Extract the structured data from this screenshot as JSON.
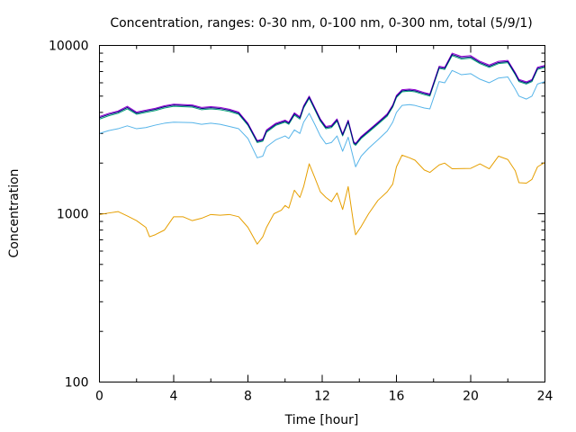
{
  "chart_data": {
    "type": "line",
    "title": "Concentration, ranges: 0-30 nm, 0-100 nm, 0-300 nm, total (5/9/1)",
    "xlabel": "Time [hour]",
    "ylabel": "Concentration",
    "x_ticks": [
      "0",
      "4",
      "8",
      "12",
      "16",
      "20",
      "24"
    ],
    "y_ticks": [
      "100",
      "1000",
      "10000"
    ],
    "xlim": [
      0,
      24
    ],
    "ylim": [
      100,
      10000
    ],
    "y_scale": "log",
    "grid": false,
    "legend": "none",
    "series": [
      {
        "color": "#e69f00",
        "points": [
          [
            0,
            990
          ],
          [
            0.5,
            1010
          ],
          [
            1,
            1030
          ],
          [
            1.5,
            970
          ],
          [
            2,
            910
          ],
          [
            2.5,
            830
          ],
          [
            2.7,
            730
          ],
          [
            3,
            750
          ],
          [
            3.5,
            800
          ],
          [
            4,
            960
          ],
          [
            4.5,
            960
          ],
          [
            5,
            910
          ],
          [
            5.5,
            940
          ],
          [
            6,
            990
          ],
          [
            6.5,
            980
          ],
          [
            7,
            990
          ],
          [
            7.5,
            960
          ],
          [
            8,
            830
          ],
          [
            8.5,
            660
          ],
          [
            8.8,
            730
          ],
          [
            9,
            830
          ],
          [
            9.4,
            1000
          ],
          [
            9.8,
            1050
          ],
          [
            10,
            1120
          ],
          [
            10.2,
            1080
          ],
          [
            10.5,
            1380
          ],
          [
            10.8,
            1250
          ],
          [
            11,
            1450
          ],
          [
            11.3,
            1980
          ],
          [
            11.6,
            1640
          ],
          [
            11.9,
            1350
          ],
          [
            12.2,
            1250
          ],
          [
            12.5,
            1180
          ],
          [
            12.8,
            1330
          ],
          [
            13.1,
            1060
          ],
          [
            13.4,
            1450
          ],
          [
            13.7,
            860
          ],
          [
            13.8,
            750
          ],
          [
            14.1,
            840
          ],
          [
            14.5,
            1000
          ],
          [
            15,
            1200
          ],
          [
            15.5,
            1350
          ],
          [
            15.8,
            1500
          ],
          [
            16,
            1900
          ],
          [
            16.3,
            2230
          ],
          [
            16.7,
            2150
          ],
          [
            17,
            2080
          ],
          [
            17.5,
            1820
          ],
          [
            17.8,
            1760
          ],
          [
            18.3,
            1950
          ],
          [
            18.6,
            2000
          ],
          [
            19,
            1850
          ],
          [
            20,
            1860
          ],
          [
            20.5,
            1980
          ],
          [
            21,
            1850
          ],
          [
            21.5,
            2200
          ],
          [
            22,
            2100
          ],
          [
            22.4,
            1800
          ],
          [
            22.6,
            1530
          ],
          [
            23,
            1520
          ],
          [
            23.3,
            1600
          ],
          [
            23.6,
            1900
          ],
          [
            24,
            2020
          ]
        ]
      },
      {
        "color": "#56b4e9",
        "points": [
          [
            0,
            3000
          ],
          [
            0.5,
            3120
          ],
          [
            1,
            3200
          ],
          [
            1.5,
            3330
          ],
          [
            2,
            3200
          ],
          [
            2.5,
            3250
          ],
          [
            3,
            3360
          ],
          [
            3.5,
            3450
          ],
          [
            4,
            3500
          ],
          [
            5,
            3480
          ],
          [
            5.5,
            3400
          ],
          [
            6,
            3450
          ],
          [
            6.5,
            3400
          ],
          [
            7,
            3300
          ],
          [
            7.5,
            3200
          ],
          [
            8,
            2800
          ],
          [
            8.5,
            2150
          ],
          [
            8.8,
            2200
          ],
          [
            9,
            2500
          ],
          [
            9.5,
            2750
          ],
          [
            10,
            2900
          ],
          [
            10.2,
            2800
          ],
          [
            10.5,
            3150
          ],
          [
            10.8,
            3000
          ],
          [
            11,
            3500
          ],
          [
            11.3,
            3950
          ],
          [
            11.6,
            3400
          ],
          [
            11.9,
            2900
          ],
          [
            12.2,
            2600
          ],
          [
            12.5,
            2650
          ],
          [
            12.8,
            2900
          ],
          [
            13.1,
            2350
          ],
          [
            13.4,
            2850
          ],
          [
            13.7,
            2100
          ],
          [
            13.8,
            1900
          ],
          [
            14.1,
            2200
          ],
          [
            14.5,
            2450
          ],
          [
            15,
            2750
          ],
          [
            15.5,
            3100
          ],
          [
            15.8,
            3500
          ],
          [
            16,
            4000
          ],
          [
            16.3,
            4400
          ],
          [
            16.7,
            4450
          ],
          [
            17,
            4400
          ],
          [
            17.5,
            4250
          ],
          [
            17.8,
            4200
          ],
          [
            18.3,
            6100
          ],
          [
            18.6,
            6000
          ],
          [
            19,
            7100
          ],
          [
            19.5,
            6700
          ],
          [
            20,
            6800
          ],
          [
            20.5,
            6300
          ],
          [
            21,
            6000
          ],
          [
            21.5,
            6400
          ],
          [
            22,
            6500
          ],
          [
            22.4,
            5500
          ],
          [
            22.6,
            5000
          ],
          [
            23,
            4800
          ],
          [
            23.3,
            5000
          ],
          [
            23.6,
            5900
          ],
          [
            24,
            6100
          ]
        ]
      },
      {
        "color": "#009e73",
        "points": [
          [
            0,
            3650
          ],
          [
            0.5,
            3820
          ],
          [
            1,
            3950
          ],
          [
            1.5,
            4200
          ],
          [
            2,
            3900
          ],
          [
            2.5,
            4000
          ],
          [
            3,
            4100
          ],
          [
            3.5,
            4250
          ],
          [
            4,
            4350
          ],
          [
            5,
            4300
          ],
          [
            5.5,
            4150
          ],
          [
            6,
            4200
          ],
          [
            6.5,
            4150
          ],
          [
            7,
            4050
          ],
          [
            7.5,
            3900
          ],
          [
            8,
            3350
          ],
          [
            8.5,
            2650
          ],
          [
            8.8,
            2700
          ],
          [
            9,
            3050
          ],
          [
            9.5,
            3350
          ],
          [
            10,
            3500
          ],
          [
            10.2,
            3400
          ],
          [
            10.5,
            3850
          ],
          [
            10.8,
            3650
          ],
          [
            11,
            4250
          ],
          [
            11.3,
            4850
          ],
          [
            11.6,
            4150
          ],
          [
            11.9,
            3550
          ],
          [
            12.2,
            3200
          ],
          [
            12.5,
            3250
          ],
          [
            12.8,
            3550
          ],
          [
            13.1,
            2900
          ],
          [
            13.4,
            3500
          ],
          [
            13.7,
            2600
          ],
          [
            13.8,
            2550
          ],
          [
            14.1,
            2800
          ],
          [
            14.5,
            3050
          ],
          [
            15,
            3400
          ],
          [
            15.5,
            3800
          ],
          [
            15.8,
            4300
          ],
          [
            16,
            4900
          ],
          [
            16.3,
            5300
          ],
          [
            16.7,
            5350
          ],
          [
            17,
            5300
          ],
          [
            17.5,
            5100
          ],
          [
            17.8,
            5000
          ],
          [
            18.3,
            7300
          ],
          [
            18.6,
            7200
          ],
          [
            19,
            8700
          ],
          [
            19.5,
            8300
          ],
          [
            20,
            8400
          ],
          [
            20.5,
            7800
          ],
          [
            21,
            7400
          ],
          [
            21.5,
            7800
          ],
          [
            22,
            7900
          ],
          [
            22.4,
            6700
          ],
          [
            22.6,
            6100
          ],
          [
            23,
            5900
          ],
          [
            23.3,
            6100
          ],
          [
            23.6,
            7200
          ],
          [
            24,
            7400
          ]
        ]
      },
      {
        "color": "#9400d3",
        "points": [
          [
            0,
            3780
          ],
          [
            0.5,
            3950
          ],
          [
            1,
            4080
          ],
          [
            1.5,
            4350
          ],
          [
            2,
            4020
          ],
          [
            2.5,
            4130
          ],
          [
            3,
            4230
          ],
          [
            3.5,
            4380
          ],
          [
            4,
            4480
          ],
          [
            5,
            4430
          ],
          [
            5.5,
            4280
          ],
          [
            6,
            4330
          ],
          [
            6.5,
            4280
          ],
          [
            7,
            4180
          ],
          [
            7.5,
            4020
          ],
          [
            8,
            3450
          ],
          [
            8.5,
            2720
          ],
          [
            8.8,
            2780
          ],
          [
            9,
            3150
          ],
          [
            9.5,
            3450
          ],
          [
            10,
            3600
          ],
          [
            10.2,
            3500
          ],
          [
            10.5,
            3980
          ],
          [
            10.8,
            3770
          ],
          [
            11,
            4380
          ],
          [
            11.3,
            5000
          ],
          [
            11.6,
            4280
          ],
          [
            11.9,
            3660
          ],
          [
            12.2,
            3300
          ],
          [
            12.5,
            3350
          ],
          [
            12.8,
            3660
          ],
          [
            13.1,
            2980
          ],
          [
            13.4,
            3600
          ],
          [
            13.7,
            2680
          ],
          [
            13.8,
            2620
          ],
          [
            14.1,
            2880
          ],
          [
            14.5,
            3140
          ],
          [
            15,
            3500
          ],
          [
            15.5,
            3920
          ],
          [
            15.8,
            4430
          ],
          [
            16,
            5050
          ],
          [
            16.3,
            5460
          ],
          [
            16.7,
            5500
          ],
          [
            17,
            5460
          ],
          [
            17.5,
            5250
          ],
          [
            17.8,
            5150
          ],
          [
            18.3,
            7520
          ],
          [
            18.6,
            7420
          ],
          [
            19,
            9000
          ],
          [
            19.5,
            8600
          ],
          [
            20,
            8700
          ],
          [
            20.5,
            8050
          ],
          [
            21,
            7650
          ],
          [
            21.5,
            8050
          ],
          [
            22,
            8150
          ],
          [
            22.4,
            6900
          ],
          [
            22.6,
            6280
          ],
          [
            23,
            6080
          ],
          [
            23.3,
            6280
          ],
          [
            23.6,
            7420
          ],
          [
            24,
            7620
          ]
        ]
      },
      {
        "color": "#000080",
        "points": [
          [
            0,
            3720
          ],
          [
            0.5,
            3890
          ],
          [
            1,
            4020
          ],
          [
            1.5,
            4280
          ],
          [
            2,
            3960
          ],
          [
            2.5,
            4070
          ],
          [
            3,
            4170
          ],
          [
            3.5,
            4320
          ],
          [
            4,
            4420
          ],
          [
            5,
            4370
          ],
          [
            5.5,
            4220
          ],
          [
            6,
            4270
          ],
          [
            6.5,
            4220
          ],
          [
            7,
            4120
          ],
          [
            7.5,
            3960
          ],
          [
            8,
            3400
          ],
          [
            8.5,
            2690
          ],
          [
            8.8,
            2740
          ],
          [
            9,
            3100
          ],
          [
            9.5,
            3400
          ],
          [
            10,
            3550
          ],
          [
            10.2,
            3450
          ],
          [
            10.5,
            3920
          ],
          [
            10.8,
            3710
          ],
          [
            11,
            4320
          ],
          [
            11.3,
            4930
          ],
          [
            11.6,
            4220
          ],
          [
            11.9,
            3610
          ],
          [
            12.2,
            3250
          ],
          [
            12.5,
            3300
          ],
          [
            12.8,
            3610
          ],
          [
            13.1,
            2940
          ],
          [
            13.4,
            3550
          ],
          [
            13.7,
            2640
          ],
          [
            13.8,
            2590
          ],
          [
            14.1,
            2840
          ],
          [
            14.5,
            3100
          ],
          [
            15,
            3450
          ],
          [
            15.5,
            3860
          ],
          [
            15.8,
            4370
          ],
          [
            16,
            4980
          ],
          [
            16.3,
            5380
          ],
          [
            16.7,
            5430
          ],
          [
            17,
            5380
          ],
          [
            17.5,
            5180
          ],
          [
            17.8,
            5080
          ],
          [
            18.3,
            7410
          ],
          [
            18.6,
            7310
          ],
          [
            19,
            8850
          ],
          [
            19.5,
            8450
          ],
          [
            20,
            8550
          ],
          [
            20.5,
            7920
          ],
          [
            21,
            7520
          ],
          [
            21.5,
            7920
          ],
          [
            22,
            8020
          ],
          [
            22.4,
            6800
          ],
          [
            22.6,
            6190
          ],
          [
            23,
            5990
          ],
          [
            23.3,
            6190
          ],
          [
            23.6,
            7310
          ],
          [
            24,
            7510
          ]
        ]
      }
    ]
  }
}
